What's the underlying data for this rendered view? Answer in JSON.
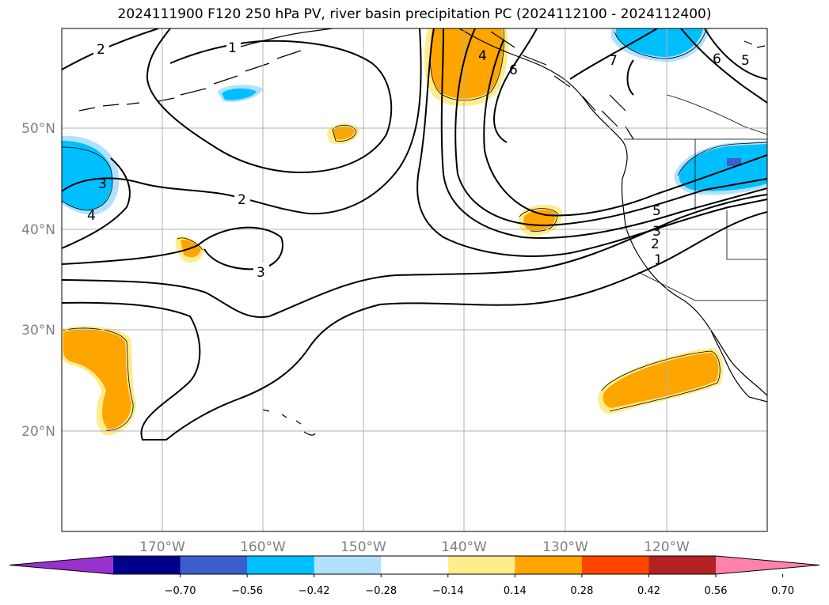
{
  "title": "2024111900 F120 250 hPa PV, river basin precipitation PC (2024112100 - 2024112400)",
  "map": {
    "lat_labels": [
      "50°N",
      "40°N",
      "30°N",
      "20°N"
    ],
    "lon_labels": [
      "170°W",
      "160°W",
      "150°W",
      "140°W",
      "130°W",
      "120°W"
    ],
    "pv_contour_labels": [
      "2",
      "1",
      "4",
      "6",
      "7",
      "6",
      "5",
      "3",
      "4",
      "2",
      "3",
      "5",
      "3",
      "2",
      "1"
    ],
    "grid": true
  },
  "colorbar": {
    "ticks": [
      "−0.70",
      "−0.56",
      "−0.42",
      "−0.28",
      "−0.14",
      "0.14",
      "0.28",
      "0.42",
      "0.56",
      "0.70"
    ],
    "colors": [
      "#9932cc",
      "#00008b",
      "#3a5fcd",
      "#00bfff",
      "#b0e2ff",
      "#ffffff",
      "#ffec8b",
      "#ffa500",
      "#ff4500",
      "#b22222",
      "#ff82ab"
    ],
    "extend": "both"
  }
}
